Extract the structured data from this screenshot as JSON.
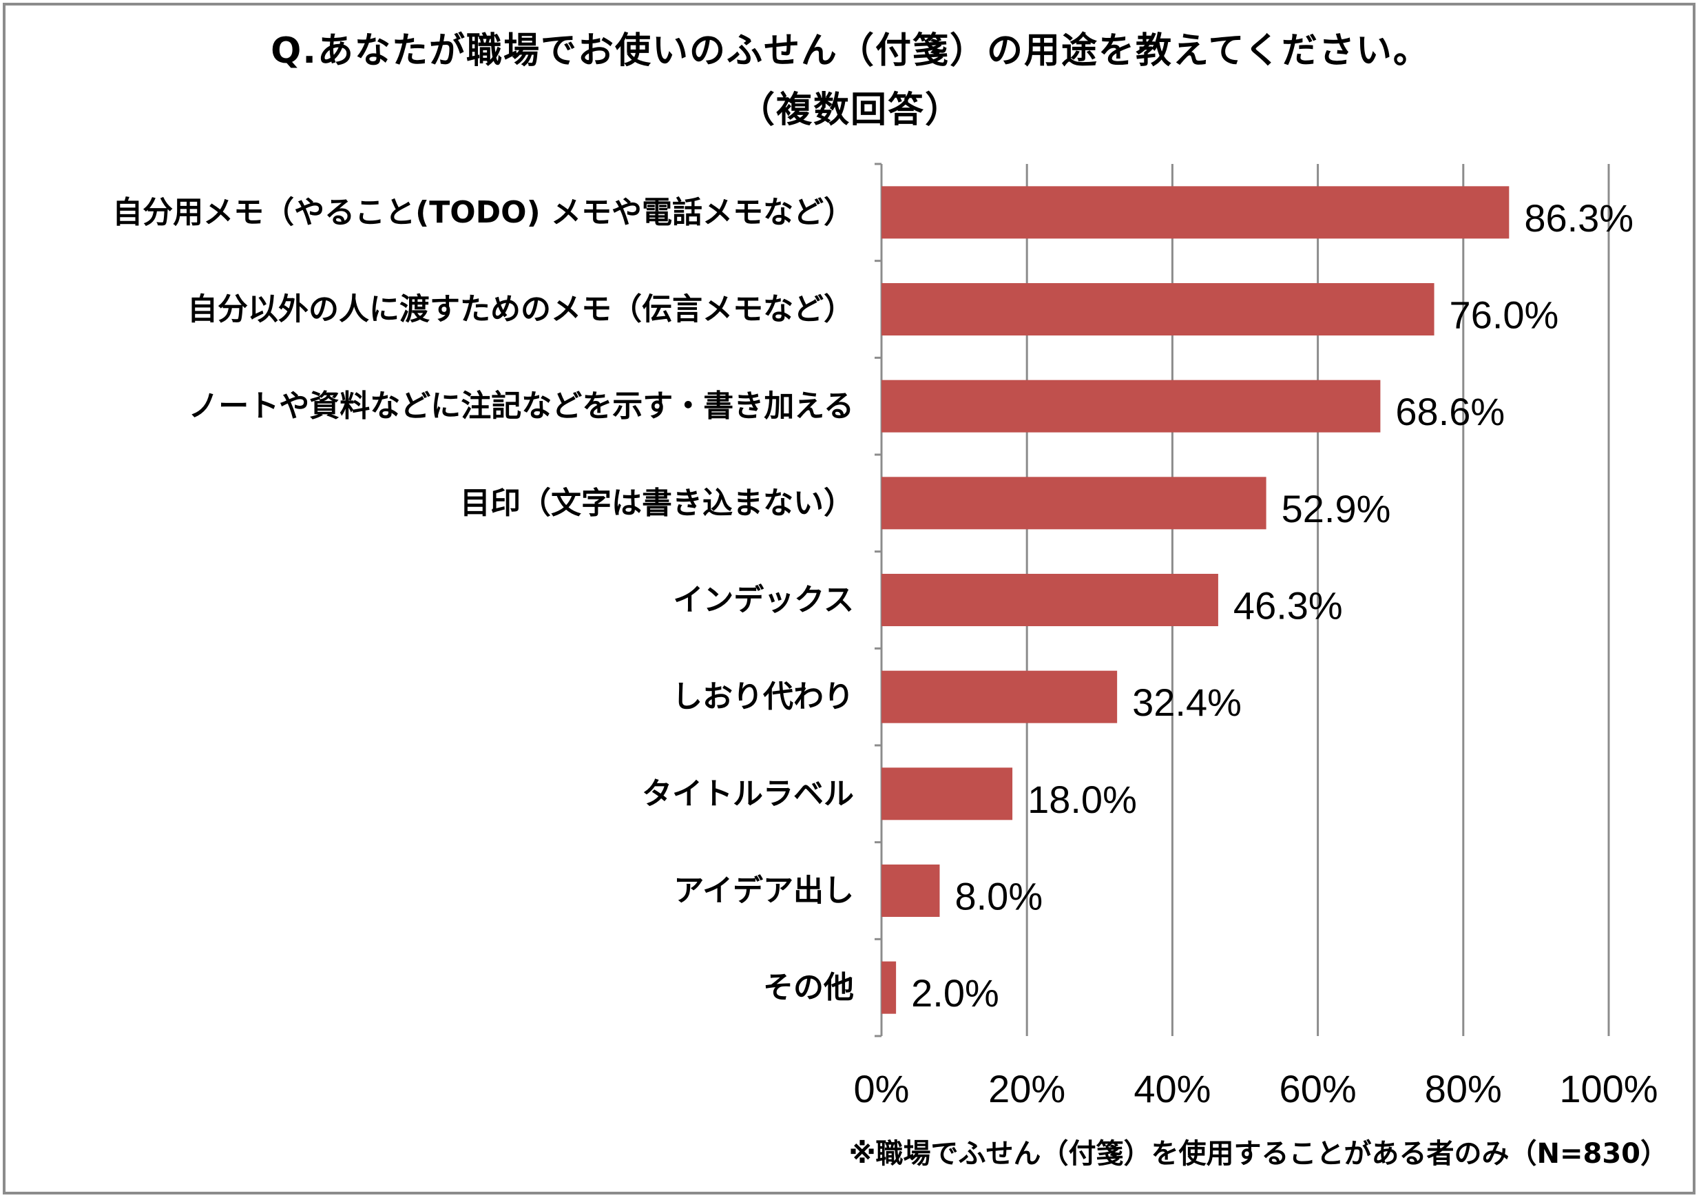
{
  "title_line1": "Q.あなたが職場でお使いのふせん（付箋）の用途を教えてください。",
  "title_line2": "（複数回答）",
  "footnote": "※職場でふせん（付箋）を使用することがある者のみ（N=830）",
  "colors": {
    "bar": "#c0504d",
    "grid": "#8c8c8c",
    "axis": "#8c8c8c"
  },
  "chart_data": {
    "type": "bar",
    "orientation": "horizontal",
    "title": "Q.あなたが職場でお使いのふせん（付箋）の用途を教えてください。（複数回答）",
    "categories": [
      "自分用メモ（やること(TODO) メモや電話メモなど）",
      "自分以外の人に渡すためのメモ（伝言メモなど）",
      "ノートや資料などに注記などを示す・書き加える",
      "目印（文字は書き込まない）",
      "インデックス",
      "しおり代わり",
      "タイトルラベル",
      "アイデア出し",
      "その他"
    ],
    "values": [
      86.3,
      76.0,
      68.6,
      52.9,
      46.3,
      32.4,
      18.0,
      8.0,
      2.0
    ],
    "value_labels": [
      "86.3%",
      "76.0%",
      "68.6%",
      "52.9%",
      "46.3%",
      "32.4%",
      "18.0%",
      "8.0%",
      "2.0%"
    ],
    "xlim": [
      0,
      100
    ],
    "xticks": [
      "0%",
      "20%",
      "40%",
      "60%",
      "80%",
      "100%"
    ],
    "grid": true,
    "legend": "none"
  }
}
